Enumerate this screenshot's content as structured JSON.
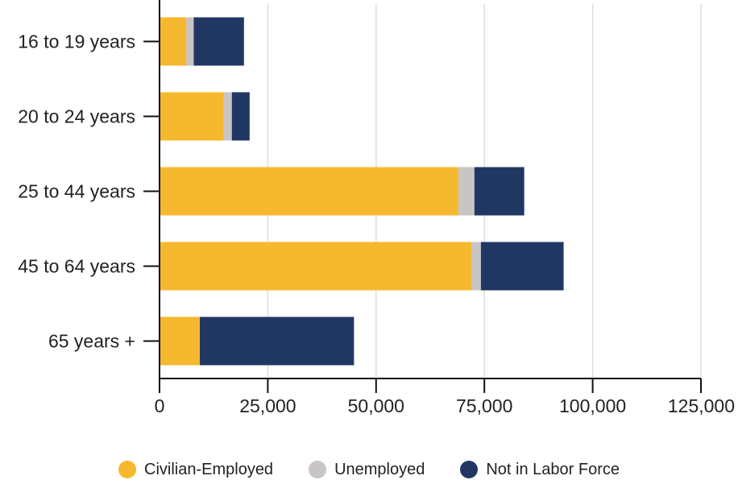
{
  "chart_data": {
    "type": "bar",
    "orientation": "horizontal",
    "stacked": true,
    "title": "",
    "xlabel": "",
    "ylabel": "",
    "categories": [
      "16 to 19 years",
      "20 to 24 years",
      "25 to 44 years",
      "45 to 64 years",
      "65 years +"
    ],
    "series": [
      {
        "name": "Civilian-Employed",
        "color": "#F5B82E",
        "values": [
          6200,
          14800,
          69000,
          72000,
          9300
        ]
      },
      {
        "name": "Unemployed",
        "color": "#C9C5C4",
        "values": [
          1700,
          1900,
          3700,
          2200,
          0
        ]
      },
      {
        "name": "Not in Labor Force",
        "color": "#213763",
        "values": [
          11600,
          4100,
          11500,
          19100,
          35600
        ]
      }
    ],
    "xlim": [
      0,
      125000
    ],
    "xticks": [
      0,
      25000,
      50000,
      75000,
      100000,
      125000
    ],
    "xtick_labels": [
      "0",
      "25,000",
      "50,000",
      "75,000",
      "100,000",
      "125,000"
    ],
    "grid": "vertical",
    "legend_position": "bottom"
  }
}
